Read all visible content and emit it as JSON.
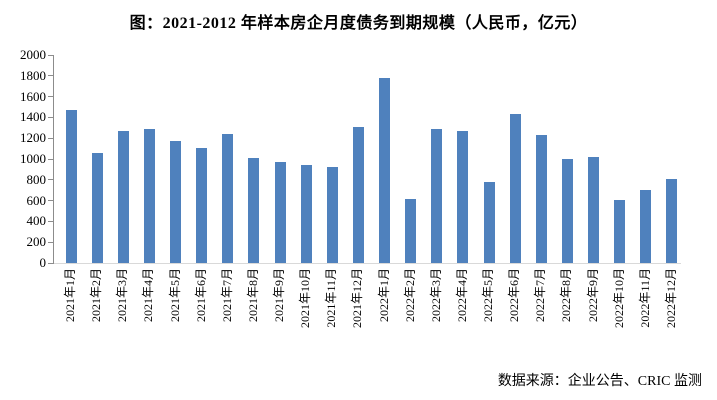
{
  "chart_data": {
    "type": "bar",
    "title": "图：2021-2012 年样本房企月度债务到期规模（人民币，亿元）",
    "categories": [
      "2021年1月",
      "2021年2月",
      "2021年3月",
      "2021年4月",
      "2021年5月",
      "2021年6月",
      "2021年7月",
      "2021年8月",
      "2021年9月",
      "2021年10月",
      "2021年11月",
      "2021年12月",
      "2022年1月",
      "2022年2月",
      "2022年3月",
      "2022年4月",
      "2022年5月",
      "2022年6月",
      "2022年7月",
      "2022年8月",
      "2022年9月",
      "2022年10月",
      "2022年11月",
      "2022年12月"
    ],
    "values": [
      1470,
      1060,
      1270,
      1285,
      1170,
      1110,
      1240,
      1005,
      970,
      940,
      920,
      1310,
      1780,
      615,
      1290,
      1265,
      775,
      1435,
      1235,
      1000,
      1020,
      605,
      705,
      810
    ],
    "xlabel": "",
    "ylabel": "",
    "ylim": [
      0,
      2000
    ],
    "ytick_step": 200,
    "ytick_labels": [
      "0",
      "200",
      "400",
      "600",
      "800",
      "1000",
      "1200",
      "1400",
      "1600",
      "1800",
      "2000"
    ],
    "grid": false,
    "legend": null,
    "bar_color": "#4f81bd",
    "axis_color": "#8c8c8c",
    "baseline_color": "#d9d9d9",
    "source_note": "数据来源：企业公告、CRIC 监测"
  }
}
